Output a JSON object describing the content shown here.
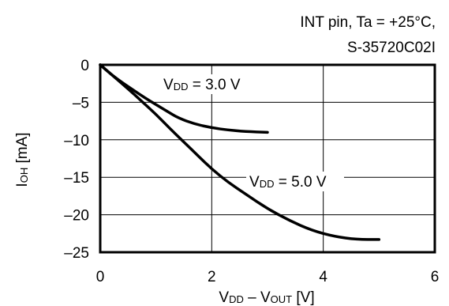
{
  "chart_data": {
    "type": "line",
    "annotation_line1": "INT pin, Ta = +25°C,",
    "annotation_line2": "S-35720C02I",
    "xlabel": {
      "main1": "V",
      "sub1": "DD",
      "mid": " – V",
      "sub2": "OUT",
      "tail": " [V]"
    },
    "ylabel": {
      "main": "I",
      "sub": "OH",
      "tail": " [mA]"
    },
    "xlim": [
      0,
      6
    ],
    "ylim": [
      -25,
      0
    ],
    "xticks": [
      0,
      2,
      4,
      6
    ],
    "yticks": [
      0,
      -5,
      -10,
      -15,
      -20,
      -25
    ],
    "xtick_labels": [
      "0",
      "2",
      "4",
      "6"
    ],
    "ytick_labels": [
      "0",
      "–5",
      "–10",
      "–15",
      "–20",
      "–25"
    ],
    "grid": true,
    "series": [
      {
        "label_main": "V",
        "label_sub": "DD",
        "label_value": " = 3.0 V",
        "x": [
          0,
          0.2,
          0.4,
          0.6,
          0.8,
          1.0,
          1.2,
          1.4,
          1.7,
          2.0,
          2.3,
          2.6,
          3.0
        ],
        "y": [
          0,
          -1.3,
          -2.4,
          -3.4,
          -4.4,
          -5.3,
          -6.2,
          -7.1,
          -7.9,
          -8.4,
          -8.7,
          -8.9,
          -9.0
        ]
      },
      {
        "label_main": "V",
        "label_sub": "DD",
        "label_value": " = 5.0 V",
        "x": [
          0,
          0.25,
          0.5,
          0.75,
          1.0,
          1.25,
          1.5,
          1.75,
          2.0,
          2.3,
          2.6,
          3.0,
          3.4,
          3.8,
          4.2,
          4.6,
          5.0
        ],
        "y": [
          0,
          -1.6,
          -3.2,
          -4.9,
          -6.6,
          -8.5,
          -10.3,
          -12.1,
          -13.9,
          -15.7,
          -17.2,
          -19.2,
          -20.8,
          -22.1,
          -22.9,
          -23.3,
          -23.3
        ]
      }
    ]
  }
}
